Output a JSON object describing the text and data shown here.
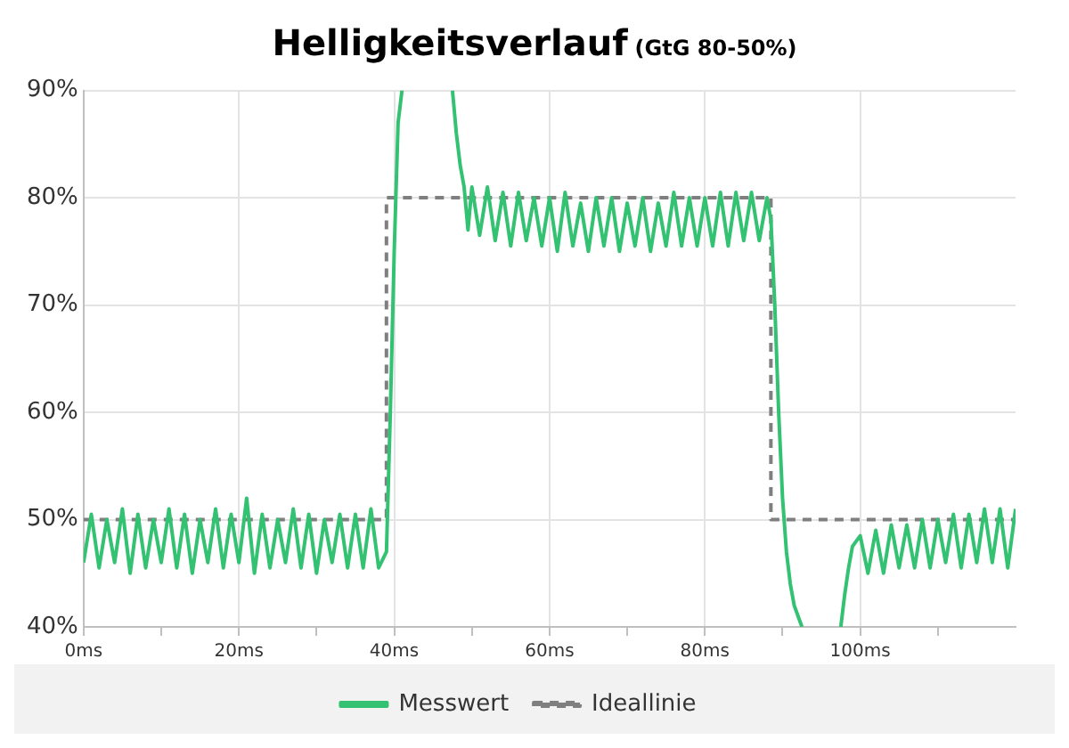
{
  "chart_data": {
    "type": "line",
    "title": "Helligkeitsverlauf",
    "subtitle": "(GtG 80-50%)",
    "xlim": [
      0,
      120
    ],
    "xticks": [
      {
        "value": 0,
        "label": "0ms"
      },
      {
        "value": 10,
        "label": null
      },
      {
        "value": 20,
        "label": "20ms"
      },
      {
        "value": 30,
        "label": null
      },
      {
        "value": 40,
        "label": "40ms"
      },
      {
        "value": 50,
        "label": null
      },
      {
        "value": 60,
        "label": "60ms"
      },
      {
        "value": 70,
        "label": null
      },
      {
        "value": 80,
        "label": "80ms"
      },
      {
        "value": 90,
        "label": null
      },
      {
        "value": 100,
        "label": "100ms"
      },
      {
        "value": 110,
        "label": null
      }
    ],
    "ylim": [
      40,
      90
    ],
    "yticks": [
      {
        "value": 40,
        "label": "40%"
      },
      {
        "value": 50,
        "label": "50%"
      },
      {
        "value": 60,
        "label": "60%"
      },
      {
        "value": 70,
        "label": "70%"
      },
      {
        "value": 80,
        "label": "80%"
      },
      {
        "value": 90,
        "label": "90%"
      }
    ],
    "grid": true,
    "legend": "bottom",
    "marker": "none",
    "series": [
      {
        "name": "Messwert",
        "line_style": "solid",
        "color": "#33c172",
        "x": [
          0,
          1,
          2,
          3,
          4,
          5,
          6,
          7,
          8,
          9,
          10,
          11,
          12,
          13,
          14,
          15,
          16,
          17,
          18,
          19,
          20,
          21,
          22,
          23,
          24,
          25,
          26,
          27,
          28,
          29,
          30,
          31,
          32,
          33,
          34,
          35,
          36,
          37,
          38,
          39,
          39.5,
          40,
          40.5,
          41,
          44,
          47.5,
          48,
          48.5,
          49,
          49.5,
          50,
          51,
          52,
          53,
          54,
          55,
          56,
          57,
          58,
          59,
          60,
          61,
          62,
          63,
          64,
          65,
          66,
          67,
          68,
          69,
          70,
          71,
          72,
          73,
          74,
          75,
          76,
          77,
          78,
          79,
          80,
          81,
          82,
          83,
          84,
          85,
          86,
          87,
          88,
          88.5,
          89,
          89.5,
          90,
          90.5,
          91,
          91.5,
          92,
          92.5,
          95,
          97.5,
          98,
          98.5,
          99,
          100,
          101,
          102,
          103,
          104,
          105,
          106,
          107,
          108,
          109,
          110,
          111,
          112,
          113,
          114,
          115,
          116,
          117,
          118,
          119,
          120
        ],
        "values": [
          46,
          50.5,
          45.5,
          50,
          46,
          51,
          45,
          50.5,
          45.5,
          50,
          46,
          51,
          45.5,
          50.5,
          45,
          50,
          46,
          51,
          45.5,
          50.5,
          46,
          52,
          45,
          50.5,
          45.5,
          50,
          46,
          51,
          45.5,
          50.5,
          45,
          50,
          46,
          50.5,
          45.5,
          50.5,
          45.5,
          51,
          45.5,
          47,
          60,
          75,
          87,
          90,
          null,
          90,
          86,
          83,
          81,
          77,
          81,
          76.5,
          81,
          76,
          80.5,
          75.5,
          80.5,
          76,
          80,
          75.5,
          80,
          75,
          80.5,
          75.5,
          79.5,
          75,
          80,
          75.5,
          80,
          75,
          79.5,
          75.5,
          80,
          75,
          79.5,
          75.5,
          80.5,
          75.5,
          80,
          75.5,
          80,
          75.5,
          80.5,
          75.5,
          80.5,
          76,
          80.5,
          76,
          80,
          78,
          70,
          60,
          52,
          47,
          44,
          42,
          41,
          40,
          null,
          40,
          43,
          45.5,
          47.5,
          48.5,
          45,
          49,
          45,
          49.5,
          45.5,
          49.5,
          45.5,
          50,
          45.5,
          50,
          46,
          50.5,
          45.5,
          50.5,
          46,
          51,
          46,
          51,
          45.5,
          51
        ]
      },
      {
        "name": "Ideallinie",
        "line_style": "dashed",
        "color": "#7f7f7f",
        "x": [
          0,
          39,
          39,
          88.5,
          88.5,
          120
        ],
        "values": [
          50,
          50,
          80,
          80,
          50,
          50
        ]
      }
    ]
  }
}
